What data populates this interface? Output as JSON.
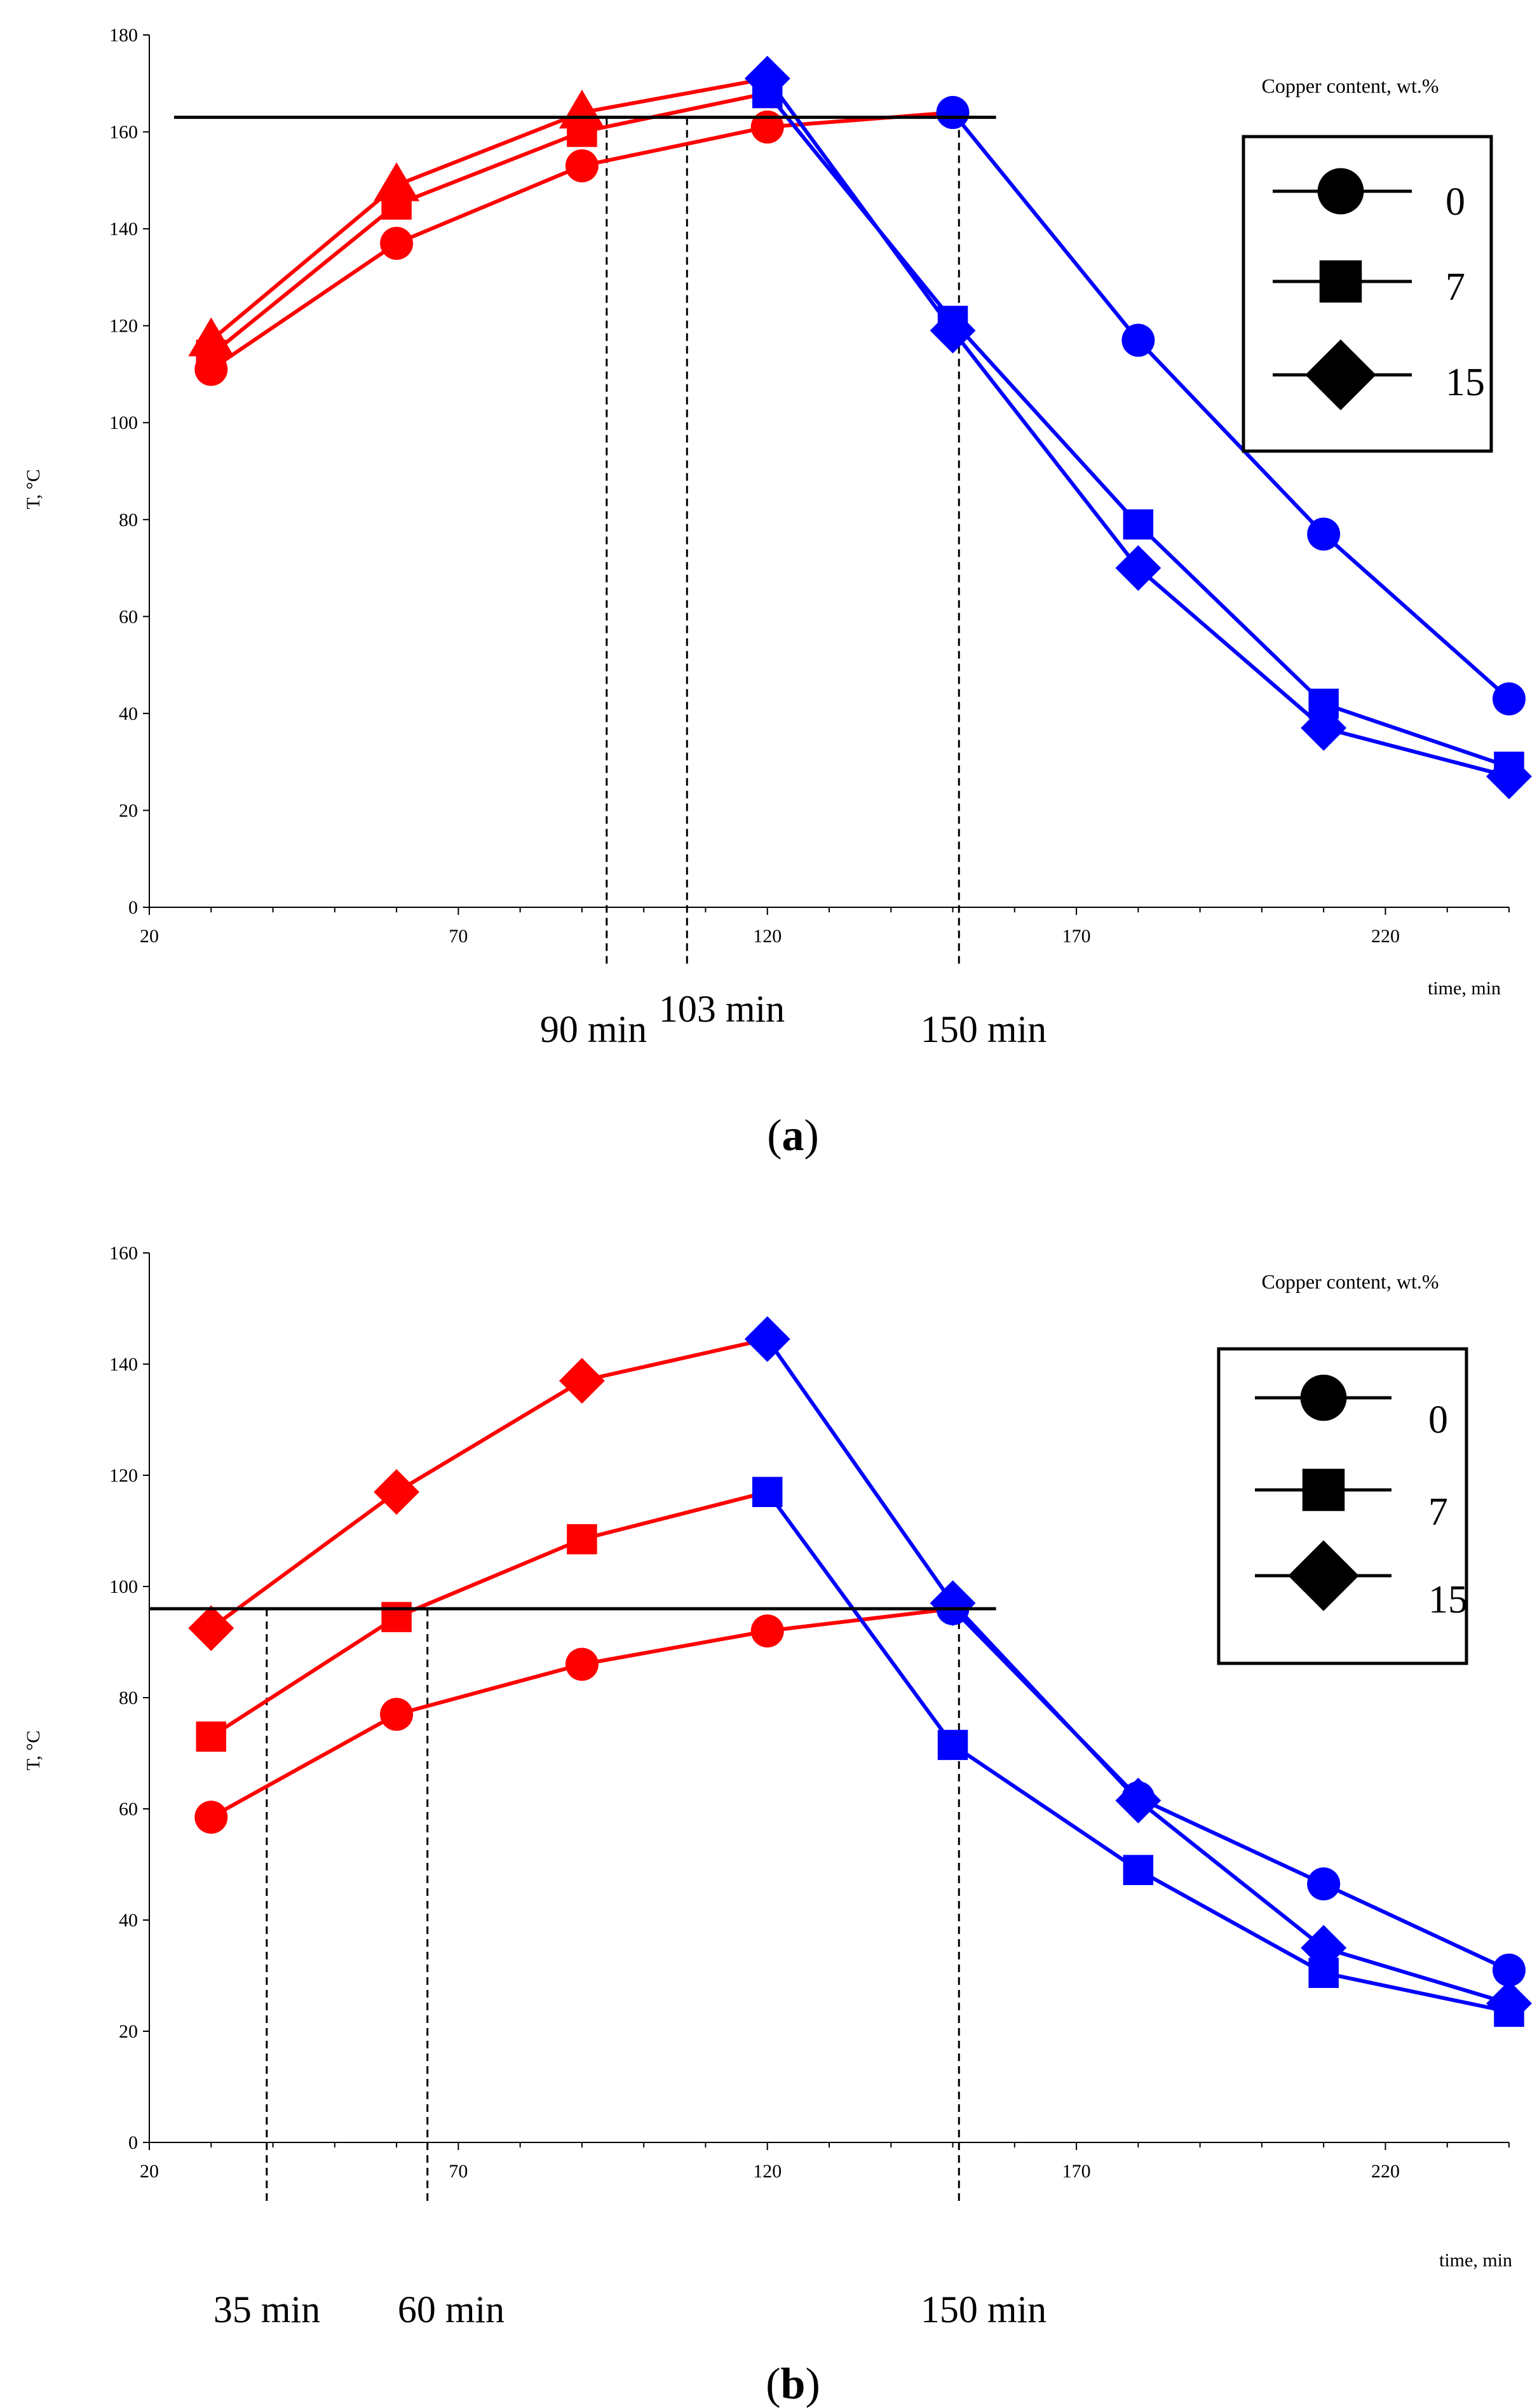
{
  "colors": {
    "heating": "#ff0000",
    "cooling": "#0000ff",
    "axis": "#000000",
    "background": "#ffffff"
  },
  "chart_data": [
    {
      "id": "a",
      "type": "line",
      "caption_label": "a",
      "xlabel": "time, min",
      "ylabel": "T, °C",
      "xlim": [
        20,
        240
      ],
      "ylim": [
        0,
        180
      ],
      "xticks": [
        20,
        70,
        120,
        170,
        220
      ],
      "yticks": [
        0,
        20,
        40,
        60,
        80,
        100,
        120,
        140,
        160,
        180
      ],
      "threshold": {
        "y": 163,
        "x_start": 24,
        "x_end": 157
      },
      "vlines": [
        {
          "x": 94,
          "label": "90 min"
        },
        {
          "x": 107,
          "label": "103 min"
        },
        {
          "x": 151,
          "label": "150 min"
        }
      ],
      "legend": {
        "title": "Copper content, wt.%",
        "entries": [
          "0",
          "7",
          "15"
        ],
        "position": "top-right"
      },
      "series": [
        {
          "name": "0",
          "marker": "circle",
          "heating": {
            "x": [
              30,
              60,
              90,
              120,
              150
            ],
            "y": [
              111,
              137,
              153,
              161,
              164
            ]
          },
          "cooling": {
            "x": [
              150,
              180,
              210,
              240
            ],
            "y": [
              164,
              117,
              77,
              43
            ]
          }
        },
        {
          "name": "7",
          "marker": "square",
          "heating": {
            "x": [
              30,
              60,
              90,
              120
            ],
            "y": [
              114,
              145,
              160,
              168
            ]
          },
          "cooling": {
            "x": [
              120,
              150,
              180,
              210,
              240
            ],
            "y": [
              168,
              121,
              79,
              42,
              29
            ]
          }
        },
        {
          "name": "15",
          "marker": "diamond",
          "heating": {
            "x": [
              30,
              60,
              90,
              120
            ],
            "y": [
              117,
              149,
              164,
              171
            ]
          },
          "cooling": {
            "x": [
              120,
              150,
              180,
              210,
              240
            ],
            "y": [
              171,
              119,
              70,
              37,
              27
            ]
          }
        }
      ]
    },
    {
      "id": "b",
      "type": "line",
      "caption_label": "b",
      "xlabel": "time, min",
      "ylabel": "T, °C",
      "xlim": [
        20,
        240
      ],
      "ylim": [
        0,
        160
      ],
      "xticks": [
        20,
        70,
        120,
        170,
        220
      ],
      "yticks": [
        0,
        20,
        40,
        60,
        80,
        100,
        120,
        140,
        160
      ],
      "threshold": {
        "y": 96,
        "x_start": 20,
        "x_end": 157
      },
      "vlines": [
        {
          "x": 39,
          "label": "35 min"
        },
        {
          "x": 65,
          "label": "60 min"
        },
        {
          "x": 151,
          "label": "150 min"
        }
      ],
      "legend": {
        "title": "Copper content, wt.%",
        "entries": [
          "0",
          "7",
          "15"
        ],
        "position": "top-right"
      },
      "series": [
        {
          "name": "0",
          "marker": "circle",
          "heating": {
            "x": [
              30,
              60,
              90,
              120,
              150
            ],
            "y": [
              58.5,
              77,
              86,
              92,
              96
            ]
          },
          "cooling": {
            "x": [
              150,
              180,
              210,
              240
            ],
            "y": [
              96,
              62,
              46.5,
              31
            ]
          }
        },
        {
          "name": "7",
          "marker": "square",
          "heating": {
            "x": [
              30,
              60,
              90,
              120
            ],
            "y": [
              73,
              94.5,
              108.5,
              117
            ]
          },
          "cooling": {
            "x": [
              120,
              150,
              180,
              210,
              240
            ],
            "y": [
              117,
              71.5,
              49,
              30.5,
              23.5
            ]
          }
        },
        {
          "name": "15",
          "marker": "diamond",
          "heating": {
            "x": [
              30,
              60,
              90,
              120
            ],
            "y": [
              92.5,
              117,
              137,
              144.5
            ]
          },
          "cooling": {
            "x": [
              120,
              150,
              180,
              210,
              240
            ],
            "y": [
              144.5,
              97,
              61.5,
              35,
              25
            ]
          }
        }
      ]
    }
  ]
}
